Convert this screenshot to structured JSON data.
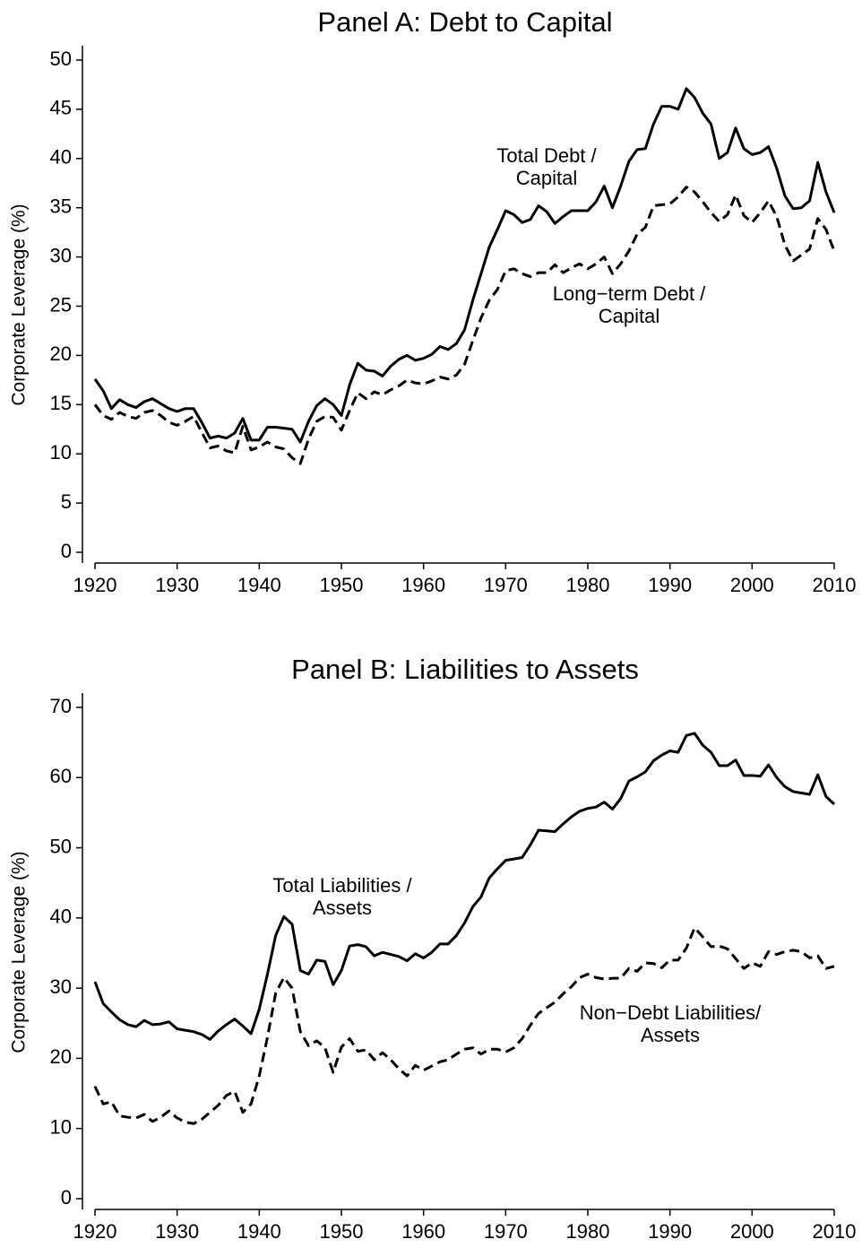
{
  "chart_data": [
    {
      "type": "line",
      "title": "Panel A: Debt to Capital",
      "ylabel": "Corporate Leverage (%)",
      "x": [
        1920,
        1921,
        1922,
        1923,
        1924,
        1925,
        1926,
        1927,
        1928,
        1929,
        1930,
        1931,
        1932,
        1933,
        1934,
        1935,
        1936,
        1937,
        1938,
        1939,
        1940,
        1941,
        1942,
        1943,
        1944,
        1945,
        1946,
        1947,
        1948,
        1949,
        1950,
        1951,
        1952,
        1953,
        1954,
        1955,
        1956,
        1957,
        1958,
        1959,
        1960,
        1961,
        1962,
        1963,
        1964,
        1965,
        1966,
        1967,
        1968,
        1969,
        1970,
        1971,
        1972,
        1973,
        1974,
        1975,
        1976,
        1977,
        1978,
        1979,
        1980,
        1981,
        1982,
        1983,
        1984,
        1985,
        1986,
        1987,
        1988,
        1989,
        1990,
        1991,
        1992,
        1993,
        1994,
        1995,
        1996,
        1997,
        1998,
        1999,
        2000,
        2001,
        2002,
        2003,
        2004,
        2005,
        2006,
        2007,
        2008,
        2009,
        2010
      ],
      "xlim": [
        1920,
        2010
      ],
      "xticks": [
        1920,
        1930,
        1940,
        1950,
        1960,
        1970,
        1980,
        1990,
        2000,
        2010
      ],
      "ylim": [
        0,
        50
      ],
      "yticks": [
        0,
        5,
        10,
        15,
        20,
        25,
        30,
        35,
        40,
        45,
        50
      ],
      "series": [
        {
          "name": "Total Debt / Capital",
          "color": "#000000",
          "dash": "solid",
          "values": [
            17.6,
            16.4,
            14.6,
            15.5,
            15.0,
            14.7,
            15.3,
            15.6,
            15.1,
            14.6,
            14.3,
            14.6,
            14.6,
            13.2,
            11.6,
            11.8,
            11.6,
            12.1,
            13.6,
            11.4,
            11.4,
            12.7,
            12.7,
            12.6,
            12.5,
            11.2,
            13.3,
            14.9,
            15.6,
            15.0,
            13.9,
            17.0,
            19.2,
            18.5,
            18.4,
            17.9,
            18.9,
            19.6,
            20.0,
            19.5,
            19.7,
            20.1,
            20.9,
            20.6,
            21.2,
            22.6,
            25.6,
            28.3,
            31.0,
            32.8,
            34.7,
            34.3,
            33.5,
            33.8,
            35.2,
            34.6,
            33.4,
            34.1,
            34.7,
            34.7,
            34.7,
            35.6,
            37.2,
            35.0,
            37.2,
            39.7,
            40.9,
            41.0,
            43.5,
            45.3,
            45.3,
            45.0,
            47.1,
            46.2,
            44.6,
            43.5,
            40.0,
            40.6,
            43.1,
            41.0,
            40.4,
            40.6,
            41.2,
            39.0,
            36.2,
            34.9,
            35.0,
            35.7,
            39.6,
            36.6,
            34.5
          ]
        },
        {
          "name": "Long−term Debt / Capital",
          "color": "#000000",
          "dash": "dashed",
          "values": [
            15.0,
            13.9,
            13.5,
            14.2,
            13.8,
            13.6,
            14.2,
            14.4,
            13.9,
            13.2,
            12.9,
            13.3,
            13.8,
            12.2,
            10.6,
            10.8,
            10.3,
            10.1,
            12.8,
            10.4,
            10.7,
            11.2,
            10.7,
            10.5,
            9.6,
            9.0,
            11.5,
            13.3,
            13.8,
            13.7,
            12.4,
            14.4,
            16.2,
            15.6,
            16.3,
            16.0,
            16.5,
            16.9,
            17.5,
            17.2,
            17.1,
            17.4,
            17.8,
            17.6,
            18.0,
            19.1,
            21.5,
            23.8,
            25.6,
            26.7,
            28.6,
            28.8,
            28.3,
            28.0,
            28.4,
            28.4,
            29.2,
            28.4,
            28.9,
            29.3,
            28.8,
            29.3,
            30.0,
            28.3,
            29.3,
            30.6,
            32.3,
            33.0,
            35.2,
            35.3,
            35.4,
            36.1,
            37.1,
            36.6,
            35.6,
            34.5,
            33.6,
            34.3,
            36.3,
            34.2,
            33.5,
            34.5,
            35.7,
            34.1,
            31.2,
            29.6,
            30.2,
            30.8,
            33.9,
            32.8,
            30.6
          ]
        }
      ],
      "annotations": [
        [
          "Total Debt /",
          "Capital"
        ],
        [
          "Long−term Debt /",
          "Capital"
        ]
      ]
    },
    {
      "type": "line",
      "title": "Panel B: Liabilities to Assets",
      "ylabel": "Corporate Leverage (%)",
      "x": [
        1920,
        1921,
        1922,
        1923,
        1924,
        1925,
        1926,
        1927,
        1928,
        1929,
        1930,
        1931,
        1932,
        1933,
        1934,
        1935,
        1936,
        1937,
        1938,
        1939,
        1940,
        1941,
        1942,
        1943,
        1944,
        1945,
        1946,
        1947,
        1948,
        1949,
        1950,
        1951,
        1952,
        1953,
        1954,
        1955,
        1956,
        1957,
        1958,
        1959,
        1960,
        1961,
        1962,
        1963,
        1964,
        1965,
        1966,
        1967,
        1968,
        1969,
        1970,
        1971,
        1972,
        1973,
        1974,
        1975,
        1976,
        1977,
        1978,
        1979,
        1980,
        1981,
        1982,
        1983,
        1984,
        1985,
        1986,
        1987,
        1988,
        1989,
        1990,
        1991,
        1992,
        1993,
        1994,
        1995,
        1996,
        1997,
        1998,
        1999,
        2000,
        2001,
        2002,
        2003,
        2004,
        2005,
        2006,
        2007,
        2008,
        2009,
        2010
      ],
      "xlim": [
        1920,
        2010
      ],
      "xticks": [
        1920,
        1930,
        1940,
        1950,
        1960,
        1970,
        1980,
        1990,
        2000,
        2010
      ],
      "ylim": [
        0,
        70
      ],
      "yticks": [
        0,
        10,
        20,
        30,
        40,
        50,
        60,
        70
      ],
      "series": [
        {
          "name": "Total Liabilities / Assets",
          "color": "#000000",
          "dash": "solid",
          "values": [
            30.9,
            27.8,
            26.6,
            25.5,
            24.8,
            24.5,
            25.4,
            24.8,
            24.9,
            25.2,
            24.2,
            24.0,
            23.8,
            23.4,
            22.7,
            23.9,
            24.8,
            25.6,
            24.6,
            23.5,
            27.0,
            32.0,
            37.5,
            40.2,
            39.1,
            32.5,
            32.0,
            34.0,
            33.8,
            30.5,
            32.5,
            36.0,
            36.2,
            35.9,
            34.6,
            35.1,
            34.8,
            34.5,
            33.9,
            34.9,
            34.3,
            35.1,
            36.3,
            36.3,
            37.5,
            39.3,
            41.6,
            43.0,
            45.7,
            47.0,
            48.2,
            48.4,
            48.6,
            50.4,
            52.5,
            52.4,
            52.3,
            53.4,
            54.4,
            55.2,
            55.6,
            55.8,
            56.5,
            55.5,
            57.0,
            59.5,
            60.1,
            60.8,
            62.4,
            63.2,
            63.8,
            63.6,
            66.0,
            66.3,
            64.6,
            63.6,
            61.7,
            61.7,
            62.5,
            60.3,
            60.3,
            60.2,
            61.8,
            60.0,
            58.7,
            58.0,
            57.8,
            57.6,
            60.4,
            57.3,
            56.2
          ]
        },
        {
          "name": "Non−Debt Liabilities/ Assets",
          "color": "#000000",
          "dash": "dashed",
          "values": [
            16.0,
            13.5,
            13.8,
            11.8,
            11.6,
            11.5,
            12.0,
            11.0,
            11.6,
            12.5,
            11.5,
            10.9,
            10.7,
            11.3,
            12.3,
            13.3,
            14.7,
            15.3,
            12.3,
            13.5,
            17.5,
            23.0,
            29.3,
            31.5,
            30.0,
            23.8,
            21.8,
            22.5,
            21.5,
            18.0,
            21.6,
            22.8,
            21.0,
            21.2,
            19.8,
            20.8,
            19.8,
            18.5,
            17.5,
            19.0,
            18.3,
            18.9,
            19.5,
            19.8,
            20.6,
            21.3,
            21.5,
            20.6,
            21.3,
            21.3,
            20.9,
            21.5,
            22.8,
            24.7,
            26.4,
            27.2,
            28.0,
            29.2,
            30.2,
            31.5,
            32.0,
            31.5,
            31.3,
            31.4,
            31.4,
            32.8,
            32.4,
            33.6,
            33.5,
            32.9,
            34.0,
            34.0,
            35.7,
            38.6,
            37.3,
            35.9,
            36.0,
            35.6,
            34.2,
            32.8,
            33.6,
            33.1,
            35.2,
            34.8,
            35.2,
            35.4,
            35.2,
            34.3,
            34.6,
            32.8,
            33.1
          ]
        }
      ],
      "annotations": [
        [
          "Total Liabilities /",
          "Assets"
        ],
        [
          "Non−Debt Liabilities/",
          "Assets"
        ]
      ]
    }
  ]
}
